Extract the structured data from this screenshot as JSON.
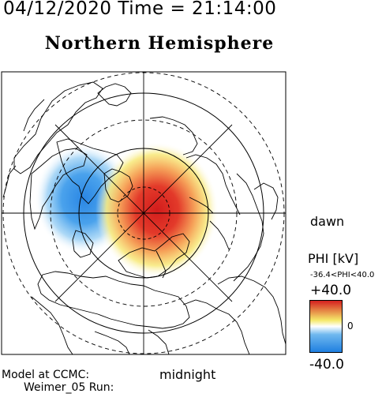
{
  "header": {
    "datetime": "04/12/2020 Time = 21:14:00"
  },
  "title": "Northern Hemisphere",
  "labels": {
    "dawn": "dawn",
    "midnight": "midnight"
  },
  "model": {
    "line1": "Model at CCMC:",
    "line2": "Weimer_05 Run:"
  },
  "colorbar": {
    "parameter": "PHI [kV]",
    "range_text": "-36.4<PHI<40.0",
    "max": "+40.0",
    "mid": "0",
    "min": "-40.0",
    "colors": {
      "max": "#d42020",
      "high": "#f5e96a",
      "zero": "#ffffff",
      "low": "#6fb8ef",
      "min": "#1f7fe0"
    }
  },
  "potential": {
    "max_kv": 40.0,
    "min_kv": -36.4
  }
}
